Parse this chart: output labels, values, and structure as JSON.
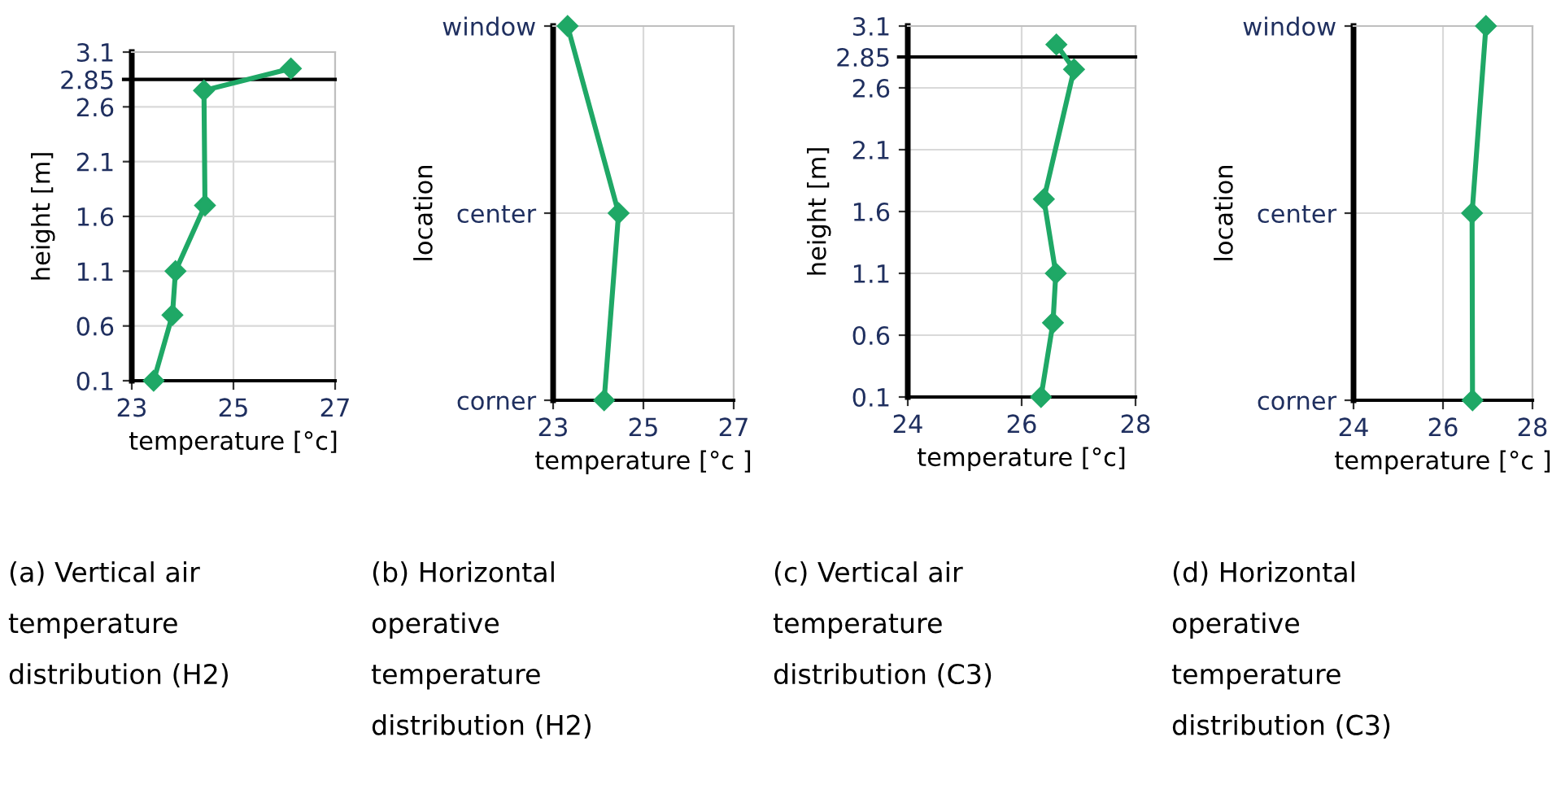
{
  "chart_data": [
    {
      "type": "line",
      "title": "(a) Vertical air\ntemperature\ndistribution (H2)",
      "xlabel": "temperature [°c]",
      "ylabel": "height [m]",
      "xlim": [
        23,
        27
      ],
      "xticks": [
        23,
        25,
        27
      ],
      "ylim": [
        0.1,
        3.1
      ],
      "yticks": [
        0.1,
        0.6,
        1.1,
        1.6,
        2.1,
        2.6,
        2.85,
        3.1
      ],
      "grid": true,
      "marker": "diamond",
      "line_style": "solid",
      "series": [
        {
          "color": "#1fa866",
          "x": [
            23.43,
            23.8,
            23.86,
            24.44,
            24.42,
            26.13
          ],
          "values": [
            0.1,
            0.7,
            1.1,
            1.7,
            2.75,
            2.95
          ]
        }
      ],
      "ref_lines": [
        {
          "axis": "y",
          "value": 2.85,
          "color": "#000000"
        }
      ]
    },
    {
      "type": "line",
      "orientation": "horizontal",
      "title": "(b) Horizontal\noperative\ntemperature\ndistribution (H2)",
      "xlabel": "temperature [°c ]",
      "ylabel": "location",
      "categories": [
        "window",
        "center",
        "corner"
      ],
      "xlim": [
        23,
        27
      ],
      "xticks": [
        23,
        25,
        27
      ],
      "grid": true,
      "marker": "diamond",
      "line_style": "solid",
      "series": [
        {
          "color": "#1fa866",
          "values": [
            23.32,
            24.45,
            24.13
          ]
        }
      ]
    },
    {
      "type": "line",
      "title": "(c) Vertical air\ntemperature\ndistribution (C3)",
      "xlabel": "temperature [°c]",
      "ylabel": "height [m]",
      "xlim": [
        24,
        28
      ],
      "xticks": [
        24,
        26,
        28
      ],
      "ylim": [
        0.1,
        3.1
      ],
      "yticks": [
        0.1,
        0.6,
        1.1,
        1.6,
        2.1,
        2.6,
        2.85,
        3.1
      ],
      "grid": true,
      "marker": "diamond",
      "line_style": "solid",
      "series": [
        {
          "color": "#1fa866",
          "x": [
            26.34,
            26.55,
            26.6,
            26.39,
            26.92,
            26.61
          ],
          "values": [
            0.1,
            0.7,
            1.1,
            1.7,
            2.75,
            2.95
          ]
        }
      ],
      "ref_lines": [
        {
          "axis": "y",
          "value": 2.85,
          "color": "#000000"
        }
      ]
    },
    {
      "type": "line",
      "orientation": "horizontal",
      "title": "(d) Horizontal\noperative\ntemperature\ndistribution (C3)",
      "xlabel": "temperature [°c ]",
      "ylabel": "location",
      "categories": [
        "window",
        "center",
        "corner"
      ],
      "xlim": [
        24,
        28
      ],
      "xticks": [
        24,
        26,
        28
      ],
      "grid": true,
      "marker": "diamond",
      "line_style": "solid",
      "series": [
        {
          "color": "#1fa866",
          "values": [
            26.96,
            26.65,
            26.66
          ]
        }
      ]
    }
  ]
}
